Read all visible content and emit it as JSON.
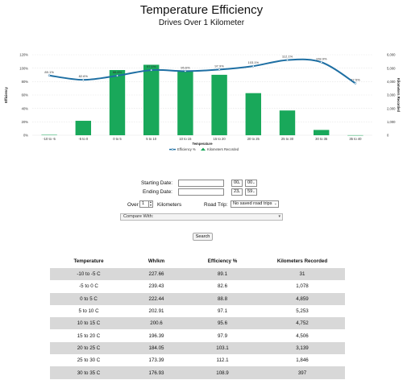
{
  "page": {
    "title": "Temperature Efficiency",
    "subtitle": "Drives Over 1 Kilometer"
  },
  "chart_data": {
    "type": "bar",
    "categories": [
      "-10 to -5",
      "-5 to 0",
      "0 to 5",
      "5 to 10",
      "10 to 15",
      "15 to 20",
      "20 to 25",
      "25 to 30",
      "30 to 35",
      "35 to 40"
    ],
    "series": [
      {
        "name": "Kilometers Recorded",
        "type": "bar",
        "axis": "right",
        "color": "#19a85a",
        "values": [
          31,
          1078,
          4859,
          5253,
          4752,
          4506,
          3139,
          1846,
          397,
          6
        ]
      },
      {
        "name": "Efficiency %",
        "type": "line",
        "axis": "left",
        "color": "#1e6fa3",
        "values": [
          89.1,
          82.6,
          88.8,
          97.1,
          95.6,
          97.9,
          103.1,
          112.1,
          108.9,
          77.5
        ],
        "labels": [
          "89.1%",
          "82.6%",
          "88.8%",
          "97.1%",
          "95.6%",
          "97.9%",
          "103.1%",
          "112.1%",
          "108.9%",
          "77.5%"
        ]
      }
    ],
    "xlabel": "Temperature",
    "ylabel_left": "Efficiency",
    "ylabel_right": "Kilometers Recorded",
    "ylim_left": [
      0,
      120
    ],
    "ylim_right": [
      0,
      6000
    ],
    "left_ticks": [
      "0%",
      "20%",
      "40%",
      "60%",
      "80%",
      "100%",
      "120%"
    ],
    "right_ticks": [
      "0",
      "1,000",
      "2,000",
      "3,000",
      "4,000",
      "5,000",
      "6,000"
    ],
    "grid": true,
    "legend_position": "bottom-center"
  },
  "form": {
    "starting_date_label": "Starting Date:",
    "ending_date_label": "Ending Date:",
    "start_hour": "00",
    "start_minute": "00",
    "end_hour": "23",
    "end_minute": "59",
    "over_label": "Over",
    "over_value": "1",
    "kilometers_label": "Kilometers",
    "road_trip_label": "Road Trip:",
    "road_trip_value": "No saved road trips",
    "compare_placeholder": "Compare With:",
    "search_label": "Search"
  },
  "table": {
    "headers": [
      "Temperature",
      "Wh/km",
      "Efficiency %",
      "Kilometers Recorded"
    ],
    "rows": [
      [
        "-10 to -5 C",
        "227.66",
        "89.1",
        "31"
      ],
      [
        "-5 to 0 C",
        "239.43",
        "82.6",
        "1,078"
      ],
      [
        "0 to 5 C",
        "222.44",
        "88.8",
        "4,859"
      ],
      [
        "5 to 10 C",
        "202.91",
        "97.1",
        "5,253"
      ],
      [
        "10 to 15 C",
        "200.6",
        "95.6",
        "4,752"
      ],
      [
        "15 to 20 C",
        "196.39",
        "97.9",
        "4,506"
      ],
      [
        "20 to 25 C",
        "184.05",
        "103.1",
        "3,139"
      ],
      [
        "25 to 30 C",
        "173.39",
        "112.1",
        "1,846"
      ],
      [
        "30 to 35 C",
        "176.93",
        "108.9",
        "397"
      ],
      [
        "35 to 40 C",
        "244.17",
        "77.5",
        "6"
      ]
    ]
  }
}
